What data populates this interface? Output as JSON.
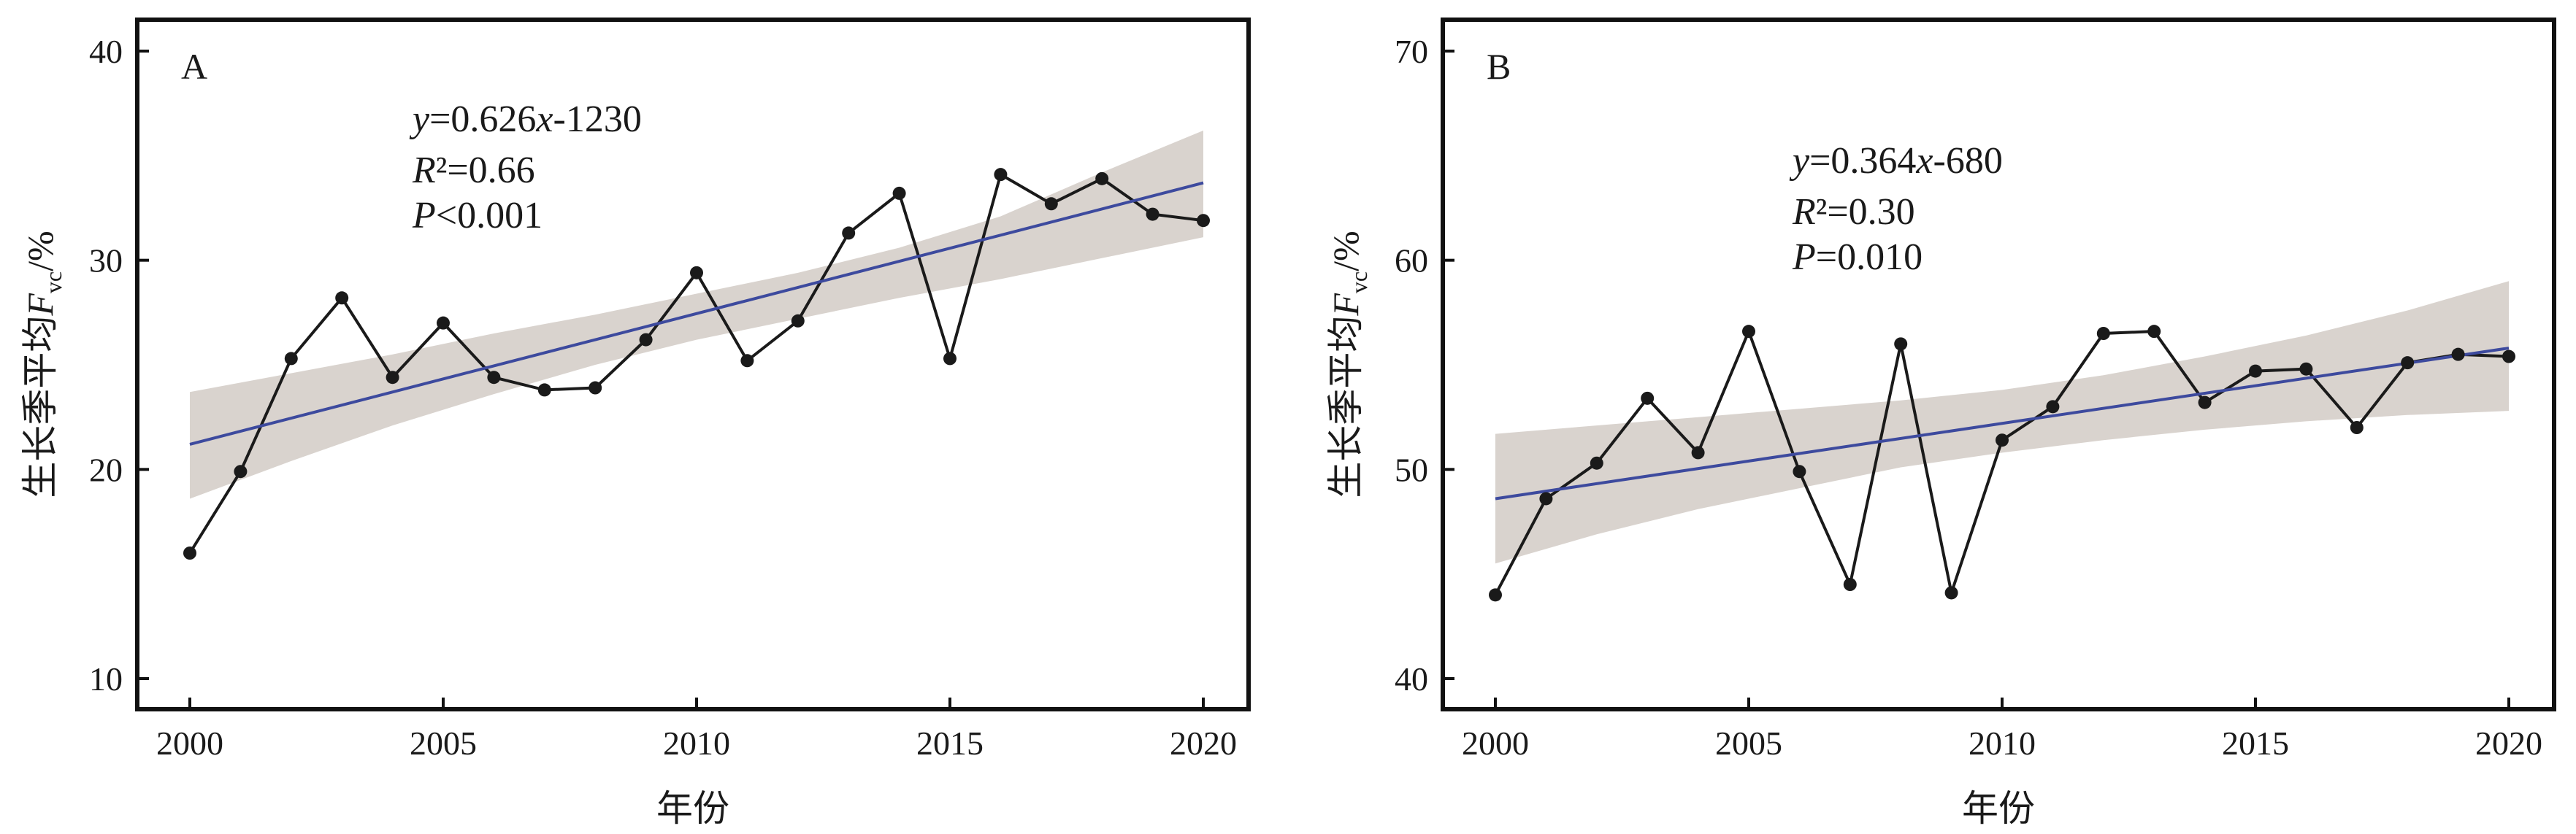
{
  "chart_data": [
    {
      "type": "line",
      "panel_label": "A",
      "xlabel": "年份",
      "ylabel": {
        "prefix": "生长季平均",
        "var": "F",
        "sub": "vc",
        "suffix": "/%"
      },
      "xlim": [
        2000,
        2020
      ],
      "ylim": [
        10,
        40
      ],
      "xticks": [
        2000,
        2005,
        2010,
        2015,
        2020
      ],
      "yticks": [
        10,
        20,
        30,
        40
      ],
      "series": [
        {
          "x": [
            2000,
            2001,
            2002,
            2003,
            2004,
            2005,
            2006,
            2007,
            2008,
            2009,
            2010,
            2011,
            2012,
            2013,
            2014,
            2015,
            2016,
            2017,
            2018,
            2019,
            2020
          ],
          "values": [
            16.0,
            19.9,
            25.3,
            28.2,
            24.4,
            27.0,
            24.4,
            23.8,
            23.9,
            26.2,
            29.4,
            25.2,
            27.1,
            31.3,
            33.2,
            25.3,
            34.1,
            32.7,
            33.9,
            32.2,
            31.9
          ],
          "color": "#1a1a1a"
        }
      ],
      "fit": {
        "color": "#3d4a9e",
        "band_color": "#d9d3ce",
        "x": [
          2000,
          2020
        ],
        "y": [
          21.2,
          33.7
        ],
        "ci_x": [
          2000,
          2002,
          2004,
          2006,
          2008,
          2010,
          2012,
          2014,
          2016,
          2018,
          2020
        ],
        "ci_upper": [
          23.7,
          24.6,
          25.5,
          26.5,
          27.4,
          28.4,
          29.4,
          30.6,
          32.1,
          34.2,
          36.2
        ],
        "ci_lower": [
          18.6,
          20.4,
          22.1,
          23.6,
          25.0,
          26.2,
          27.2,
          28.2,
          29.1,
          30.1,
          31.1
        ]
      },
      "annotation": {
        "line1": {
          "a": "y",
          "b": "=0.626",
          "c": "x",
          "d": "-1230"
        },
        "line2": {
          "a": "R",
          "b": "²=0.66"
        },
        "line3": {
          "a": "P",
          "b": "<0.001"
        }
      }
    },
    {
      "type": "line",
      "panel_label": "B",
      "xlabel": "年份",
      "ylabel": {
        "prefix": "生长季平均",
        "var": "F",
        "sub": "vc",
        "suffix": "/%"
      },
      "xlim": [
        2000,
        2020
      ],
      "ylim": [
        40,
        70
      ],
      "xticks": [
        2000,
        2005,
        2010,
        2015,
        2020
      ],
      "yticks": [
        40,
        50,
        60,
        70
      ],
      "series": [
        {
          "x": [
            2000,
            2001,
            2002,
            2003,
            2004,
            2005,
            2006,
            2007,
            2008,
            2009,
            2010,
            2011,
            2012,
            2013,
            2014,
            2015,
            2016,
            2017,
            2018,
            2019,
            2020
          ],
          "values": [
            44.0,
            48.6,
            50.3,
            53.4,
            50.8,
            56.6,
            49.9,
            44.5,
            56.0,
            44.1,
            51.4,
            53.0,
            56.5,
            56.6,
            53.2,
            54.7,
            54.8,
            52.0,
            55.1,
            55.5,
            55.4
          ],
          "color": "#1a1a1a"
        }
      ],
      "fit": {
        "color": "#3d4a9e",
        "band_color": "#d9d3ce",
        "x": [
          2000,
          2020
        ],
        "y": [
          48.6,
          55.8
        ],
        "ci_x": [
          2000,
          2002,
          2004,
          2006,
          2008,
          2010,
          2012,
          2014,
          2016,
          2018,
          2020
        ],
        "ci_upper": [
          51.7,
          52.1,
          52.5,
          52.9,
          53.3,
          53.8,
          54.5,
          55.4,
          56.4,
          57.6,
          59.0
        ],
        "ci_lower": [
          45.5,
          46.9,
          48.1,
          49.1,
          50.1,
          50.8,
          51.4,
          51.9,
          52.3,
          52.6,
          52.8
        ]
      },
      "annotation": {
        "line1": {
          "a": "y",
          "b": "=0.364",
          "c": "x",
          "d": "-680"
        },
        "line2": {
          "a": "R",
          "b": "²=0.30"
        },
        "line3": {
          "a": "P",
          "b": "=0.010"
        }
      }
    }
  ]
}
